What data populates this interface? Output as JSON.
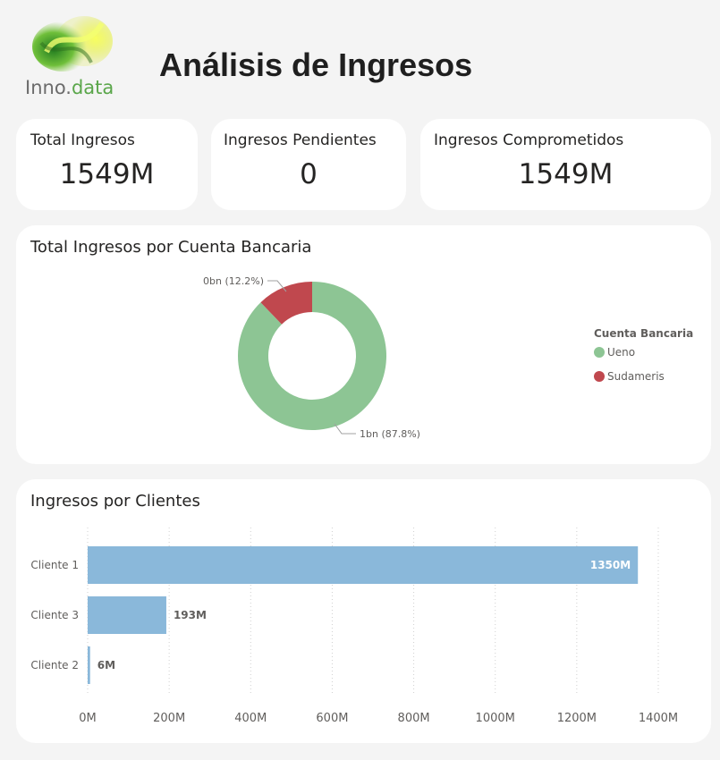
{
  "header": {
    "logo": {
      "icon": "leaf-swirl-logo",
      "name_part1": "Inno.",
      "name_part2": "data"
    },
    "title": "Análisis de Ingresos"
  },
  "kpis": [
    {
      "label": "Total Ingresos",
      "value": "1549M"
    },
    {
      "label": "Ingresos Pendientes",
      "value": "0"
    },
    {
      "label": "Ingresos Comprometidos",
      "value": "1549M"
    }
  ],
  "colors": {
    "ueno": "#8dc594",
    "sudameris": "#c0484e",
    "bar": "#8ab8da",
    "background": "#f4f4f4",
    "card": "#ffffff",
    "logo_green": "#5aa64a"
  },
  "chart_data": [
    {
      "type": "pie",
      "title": "Total Ingresos por Cuenta Bancaria",
      "legend_title": "Cuenta Bancaria",
      "legend_position": "right",
      "donut": true,
      "slices": [
        {
          "name": "Ueno",
          "percent": 87.8,
          "label": "1bn (87.8%)"
        },
        {
          "name": "Sudameris",
          "percent": 12.2,
          "label": "0bn (12.2%)"
        }
      ]
    },
    {
      "type": "bar",
      "orientation": "horizontal",
      "title": "Ingresos por Clientes",
      "categories": [
        "Cliente 1",
        "Cliente 3",
        "Cliente 2"
      ],
      "values": [
        1350,
        193,
        6
      ],
      "value_labels": [
        "1350M",
        "193M",
        "6M"
      ],
      "xlim": [
        0,
        1400
      ],
      "xticks": [
        "0M",
        "200M",
        "400M",
        "600M",
        "800M",
        "1000M",
        "1200M",
        "1400M"
      ],
      "grid": true
    }
  ]
}
